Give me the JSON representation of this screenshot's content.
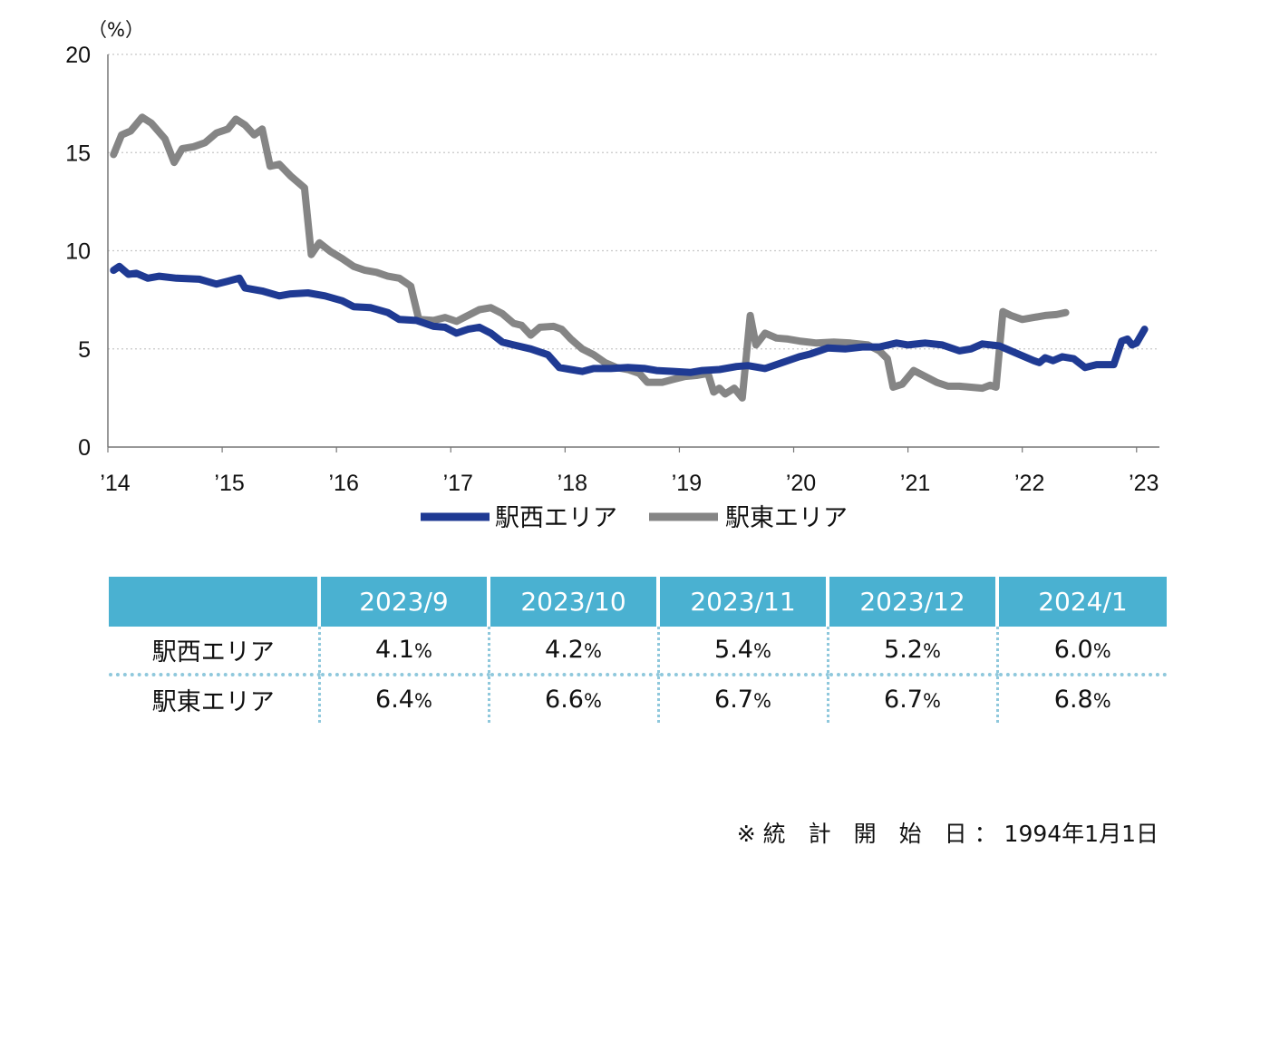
{
  "chart_data": {
    "type": "line",
    "unit_label": "（%）",
    "ylim": [
      0,
      20
    ],
    "yticks": [
      0,
      5,
      10,
      15,
      20
    ],
    "xlim": [
      2014,
      2023.2
    ],
    "x_tick_labels": [
      "’14",
      "’15",
      "’16",
      "’17",
      "’18",
      "’19",
      "’20",
      "’21",
      "’22",
      "’23"
    ],
    "x_tick_values": [
      2014,
      2015,
      2016,
      2017,
      2018,
      2019,
      2020,
      2021,
      2022,
      2023
    ],
    "grid": "horizontal dotted",
    "legend_position": "bottom-center",
    "series": [
      {
        "name": "駅西エリア",
        "color": "#1f3a93",
        "points": [
          [
            2014.05,
            9.0
          ],
          [
            2014.1,
            9.2
          ],
          [
            2014.18,
            8.8
          ],
          [
            2014.25,
            8.85
          ],
          [
            2014.35,
            8.6
          ],
          [
            2014.45,
            8.7
          ],
          [
            2014.6,
            8.6
          ],
          [
            2014.8,
            8.55
          ],
          [
            2014.95,
            8.3
          ],
          [
            2015.05,
            8.45
          ],
          [
            2015.15,
            8.6
          ],
          [
            2015.2,
            8.1
          ],
          [
            2015.35,
            7.95
          ],
          [
            2015.5,
            7.7
          ],
          [
            2015.6,
            7.8
          ],
          [
            2015.75,
            7.85
          ],
          [
            2015.9,
            7.7
          ],
          [
            2016.05,
            7.45
          ],
          [
            2016.15,
            7.15
          ],
          [
            2016.3,
            7.1
          ],
          [
            2016.45,
            6.85
          ],
          [
            2016.55,
            6.5
          ],
          [
            2016.7,
            6.45
          ],
          [
            2016.85,
            6.15
          ],
          [
            2016.95,
            6.1
          ],
          [
            2017.05,
            5.8
          ],
          [
            2017.15,
            6.0
          ],
          [
            2017.25,
            6.1
          ],
          [
            2017.35,
            5.8
          ],
          [
            2017.45,
            5.35
          ],
          [
            2017.55,
            5.2
          ],
          [
            2017.7,
            5.0
          ],
          [
            2017.85,
            4.7
          ],
          [
            2017.95,
            4.05
          ],
          [
            2018.05,
            3.95
          ],
          [
            2018.15,
            3.85
          ],
          [
            2018.25,
            4.0
          ],
          [
            2018.4,
            4.0
          ],
          [
            2018.55,
            4.05
          ],
          [
            2018.7,
            4.0
          ],
          [
            2018.8,
            3.9
          ],
          [
            2018.95,
            3.85
          ],
          [
            2019.1,
            3.8
          ],
          [
            2019.2,
            3.9
          ],
          [
            2019.35,
            3.95
          ],
          [
            2019.5,
            4.1
          ],
          [
            2019.6,
            4.15
          ],
          [
            2019.75,
            4.0
          ],
          [
            2019.9,
            4.3
          ],
          [
            2020.05,
            4.6
          ],
          [
            2020.15,
            4.75
          ],
          [
            2020.3,
            5.05
          ],
          [
            2020.45,
            5.0
          ],
          [
            2020.6,
            5.1
          ],
          [
            2020.75,
            5.1
          ],
          [
            2020.9,
            5.3
          ],
          [
            2021.0,
            5.2
          ],
          [
            2021.15,
            5.3
          ],
          [
            2021.3,
            5.2
          ],
          [
            2021.45,
            4.9
          ],
          [
            2021.55,
            5.0
          ],
          [
            2021.65,
            5.25
          ],
          [
            2021.8,
            5.15
          ],
          [
            2021.9,
            4.9
          ],
          [
            2022.0,
            4.65
          ],
          [
            2022.1,
            4.4
          ],
          [
            2022.15,
            4.3
          ],
          [
            2022.2,
            4.55
          ],
          [
            2022.27,
            4.4
          ],
          [
            2022.35,
            4.6
          ],
          [
            2022.45,
            4.5
          ],
          [
            2022.55,
            4.05
          ],
          [
            2022.65,
            4.2
          ],
          [
            2022.8,
            4.2
          ],
          [
            2022.87,
            5.4
          ],
          [
            2022.92,
            5.5
          ],
          [
            2022.96,
            5.2
          ],
          [
            2023.0,
            5.3
          ],
          [
            2023.07,
            6.0
          ]
        ]
      },
      {
        "name": "駅東エリア",
        "color": "#858585",
        "points": [
          [
            2014.05,
            14.9
          ],
          [
            2014.12,
            15.9
          ],
          [
            2014.2,
            16.1
          ],
          [
            2014.3,
            16.8
          ],
          [
            2014.38,
            16.5
          ],
          [
            2014.5,
            15.7
          ],
          [
            2014.58,
            14.5
          ],
          [
            2014.65,
            15.2
          ],
          [
            2014.75,
            15.3
          ],
          [
            2014.85,
            15.5
          ],
          [
            2014.95,
            16.0
          ],
          [
            2015.05,
            16.2
          ],
          [
            2015.12,
            16.7
          ],
          [
            2015.2,
            16.4
          ],
          [
            2015.28,
            15.9
          ],
          [
            2015.35,
            16.2
          ],
          [
            2015.42,
            14.3
          ],
          [
            2015.5,
            14.4
          ],
          [
            2015.6,
            13.8
          ],
          [
            2015.72,
            13.2
          ],
          [
            2015.78,
            9.8
          ],
          [
            2015.85,
            10.4
          ],
          [
            2015.95,
            9.95
          ],
          [
            2016.05,
            9.6
          ],
          [
            2016.15,
            9.2
          ],
          [
            2016.25,
            9.0
          ],
          [
            2016.35,
            8.9
          ],
          [
            2016.45,
            8.7
          ],
          [
            2016.55,
            8.6
          ],
          [
            2016.65,
            8.2
          ],
          [
            2016.72,
            6.5
          ],
          [
            2016.85,
            6.45
          ],
          [
            2016.95,
            6.6
          ],
          [
            2017.05,
            6.4
          ],
          [
            2017.15,
            6.7
          ],
          [
            2017.25,
            7.0
          ],
          [
            2017.35,
            7.1
          ],
          [
            2017.45,
            6.8
          ],
          [
            2017.55,
            6.3
          ],
          [
            2017.62,
            6.2
          ],
          [
            2017.7,
            5.7
          ],
          [
            2017.78,
            6.1
          ],
          [
            2017.9,
            6.15
          ],
          [
            2017.97,
            6.0
          ],
          [
            2018.05,
            5.5
          ],
          [
            2018.15,
            5.0
          ],
          [
            2018.25,
            4.7
          ],
          [
            2018.35,
            4.3
          ],
          [
            2018.45,
            4.05
          ],
          [
            2018.55,
            3.95
          ],
          [
            2018.65,
            3.75
          ],
          [
            2018.72,
            3.3
          ],
          [
            2018.85,
            3.3
          ],
          [
            2018.95,
            3.45
          ],
          [
            2019.05,
            3.6
          ],
          [
            2019.15,
            3.65
          ],
          [
            2019.25,
            3.75
          ],
          [
            2019.3,
            2.8
          ],
          [
            2019.35,
            3.0
          ],
          [
            2019.4,
            2.7
          ],
          [
            2019.48,
            3.0
          ],
          [
            2019.55,
            2.5
          ],
          [
            2019.62,
            6.7
          ],
          [
            2019.67,
            5.2
          ],
          [
            2019.75,
            5.8
          ],
          [
            2019.85,
            5.55
          ],
          [
            2019.95,
            5.5
          ],
          [
            2020.05,
            5.4
          ],
          [
            2020.2,
            5.3
          ],
          [
            2020.35,
            5.35
          ],
          [
            2020.5,
            5.3
          ],
          [
            2020.65,
            5.2
          ],
          [
            2020.75,
            4.9
          ],
          [
            2020.82,
            4.5
          ],
          [
            2020.87,
            3.05
          ],
          [
            2020.95,
            3.2
          ],
          [
            2021.05,
            3.9
          ],
          [
            2021.15,
            3.6
          ],
          [
            2021.25,
            3.3
          ],
          [
            2021.35,
            3.1
          ],
          [
            2021.45,
            3.1
          ],
          [
            2021.55,
            3.05
          ],
          [
            2021.65,
            3.0
          ],
          [
            2021.72,
            3.15
          ],
          [
            2021.77,
            3.05
          ],
          [
            2021.83,
            6.9
          ],
          [
            2021.9,
            6.7
          ],
          [
            2022.0,
            6.5
          ],
          [
            2022.1,
            6.6
          ],
          [
            2022.2,
            6.7
          ],
          [
            2022.3,
            6.75
          ],
          [
            2022.38,
            6.85
          ]
        ]
      }
    ]
  },
  "table": {
    "headers": [
      "",
      "2023/9",
      "2023/10",
      "2023/11",
      "2023/12",
      "2024/1"
    ],
    "rows": [
      {
        "label": "駅西エリア",
        "values": [
          "4.1",
          "4.2",
          "5.4",
          "5.2",
          "6.0"
        ]
      },
      {
        "label": "駅東エリア",
        "values": [
          "6.4",
          "6.6",
          "6.7",
          "6.7",
          "6.8"
        ]
      }
    ],
    "unit": "%"
  },
  "footnote": "※ 統　計　開　始　日 ： 1994年1月1日"
}
